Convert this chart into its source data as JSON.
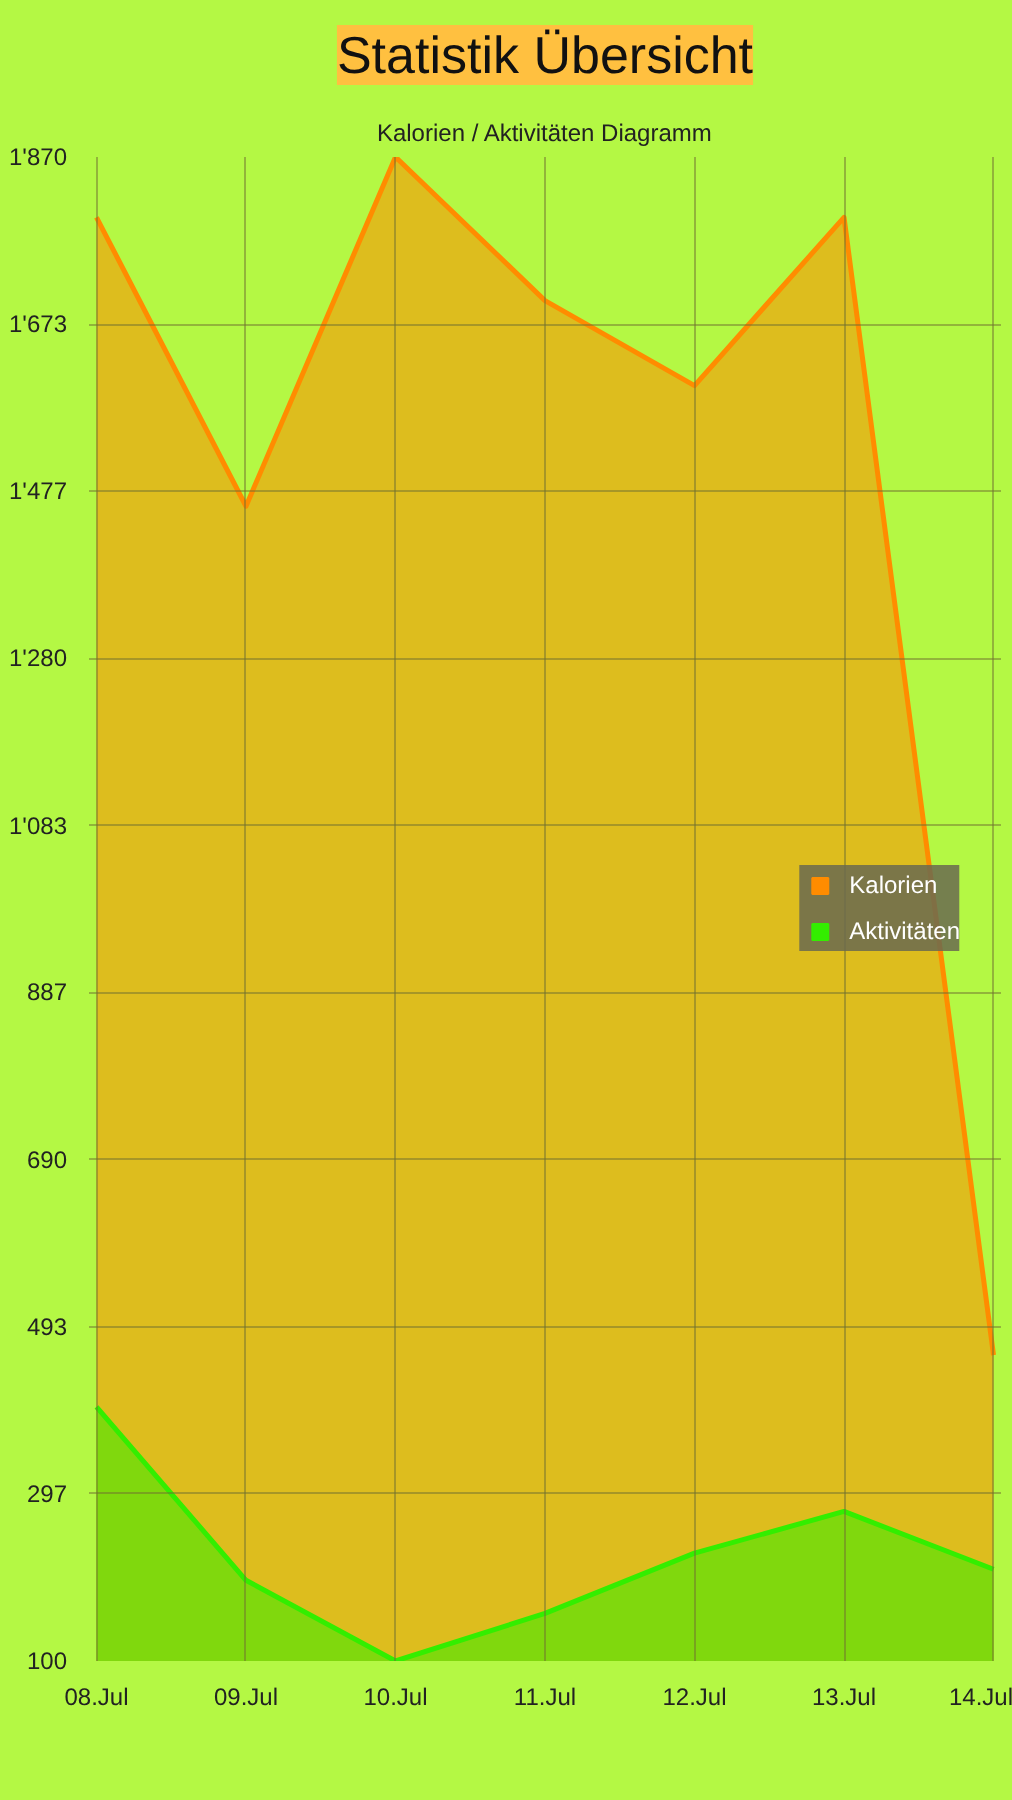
{
  "chart_data": {
    "type": "area",
    "title": "Statistik Übersicht",
    "subtitle": "Kalorien / Aktivitäten Diagramm",
    "categories": [
      "08.Jul",
      "09.Jul",
      "10.Jul",
      "11.Jul",
      "12.Jul",
      "13.Jul",
      "14.Jul"
    ],
    "series": [
      {
        "name": "Kalorien",
        "color": "#ff8c00",
        "values": [
          1799,
          1459,
          1870,
          1701,
          1601,
          1799,
          460
        ]
      },
      {
        "name": "Aktivitäten",
        "color": "#33ee00",
        "values": [
          399,
          195,
          100,
          156,
          227,
          276,
          208
        ]
      }
    ],
    "ylim": [
      100,
      1870
    ],
    "yticks": [
      100,
      297,
      493,
      690,
      887,
      {
        "value": 1083,
        "label": "1'083"
      },
      {
        "value": 1280,
        "label": "1'280"
      },
      {
        "value": 1477,
        "label": "1'477"
      },
      {
        "value": 1673,
        "label": "1'673"
      },
      {
        "value": 1870,
        "label": "1'870"
      }
    ],
    "grid": true,
    "legend": "right"
  }
}
